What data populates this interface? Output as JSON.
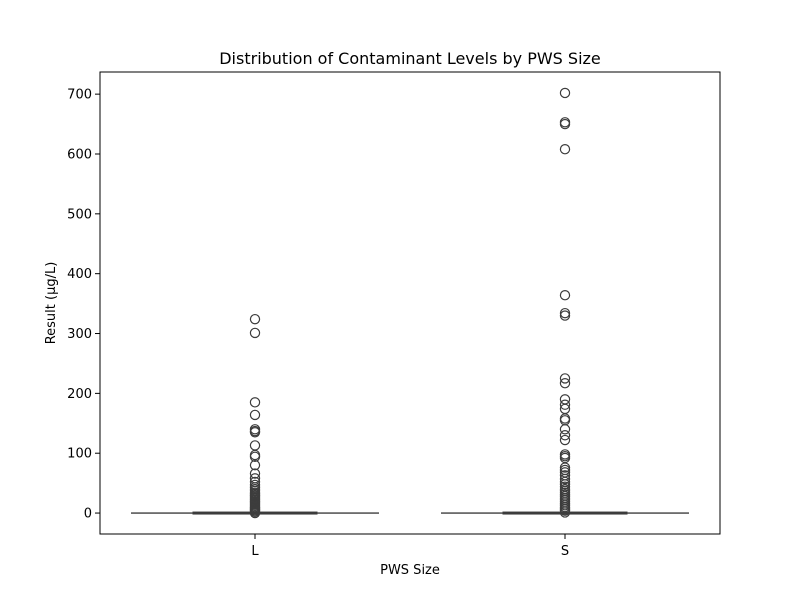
{
  "chart_data": {
    "type": "box",
    "title": "Distribution of Contaminant Levels by PWS Size",
    "xlabel": "PWS Size",
    "ylabel": "Result (µg/L)",
    "categories": [
      "L",
      "S"
    ],
    "ylim": [
      -35,
      737
    ],
    "yticks": [
      0,
      100,
      200,
      300,
      400,
      500,
      600,
      700
    ],
    "grid": false,
    "box_color": "#3d3d3d",
    "boxes": [
      {
        "category": "L",
        "q1": 0,
        "median": 0,
        "q3": 0,
        "whisker_low": 0,
        "whisker_high": 0,
        "outliers": [
          324,
          301,
          185,
          164,
          140,
          137,
          135,
          113,
          97,
          94,
          80,
          66,
          58,
          52,
          47,
          43,
          40,
          37,
          34,
          32,
          30,
          28,
          26,
          24,
          22,
          20,
          18,
          16,
          14,
          12,
          10,
          8,
          6,
          4,
          2,
          0
        ]
      },
      {
        "category": "S",
        "q1": 0,
        "median": 0,
        "q3": 0,
        "whisker_low": 0,
        "whisker_high": 0,
        "outliers": [
          702,
          653,
          650,
          608,
          364,
          334,
          330,
          225,
          217,
          190,
          181,
          174,
          158,
          155,
          140,
          130,
          122,
          98,
          95,
          92,
          76,
          72,
          68,
          63,
          57,
          52,
          48,
          44,
          40,
          37,
          34,
          31,
          28,
          25,
          22,
          19,
          16,
          13,
          10,
          7,
          4,
          1
        ]
      }
    ]
  }
}
